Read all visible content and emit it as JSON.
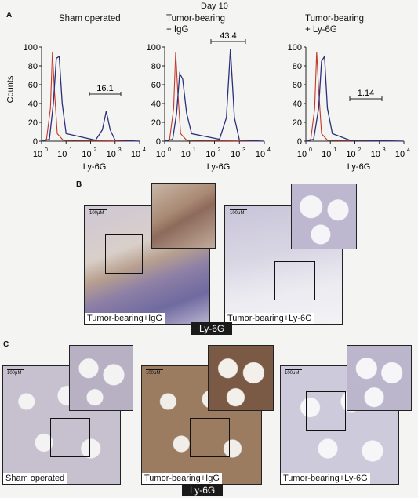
{
  "figure": {
    "day_label": "Day 10",
    "panel_a": {
      "letter": "A",
      "y_label": "Counts",
      "x_label": "Ly-6G",
      "y_ticks": [
        "0",
        "20",
        "40",
        "60",
        "80",
        "100"
      ],
      "x_ticks": [
        "10",
        "10",
        "10",
        "10",
        "10"
      ],
      "x_tick_exps": [
        "0",
        "1",
        "2",
        "3",
        "4"
      ],
      "histograms": [
        {
          "title_line1": "Sham operated",
          "title_line2": "",
          "gate_value": "16.1"
        },
        {
          "title_line1": "Tumor-bearing",
          "title_line2": "+ IgG",
          "gate_value": "43.4"
        },
        {
          "title_line1": "Tumor-bearing",
          "title_line2": "+ Ly-6G",
          "gate_value": "1.14"
        }
      ],
      "colors": {
        "isotype": "#c0392b",
        "ly6g": "#2c2f7a"
      }
    },
    "panel_b": {
      "letter": "B",
      "images": [
        {
          "caption": "Tumor-bearing+IgG",
          "scale": "100μM"
        },
        {
          "caption": "Tumor-bearing+Ly-6G",
          "scale": "100μM"
        }
      ],
      "stain_label": "Ly-6G"
    },
    "panel_c": {
      "letter": "C",
      "images": [
        {
          "caption": "Sham operated",
          "scale": "100μM"
        },
        {
          "caption": "Tumor-bearing+IgG",
          "scale": "100μM"
        },
        {
          "caption": "Tumor-bearing+Ly-6G",
          "scale": "100μM"
        }
      ],
      "stain_label": "Ly-6G"
    }
  }
}
